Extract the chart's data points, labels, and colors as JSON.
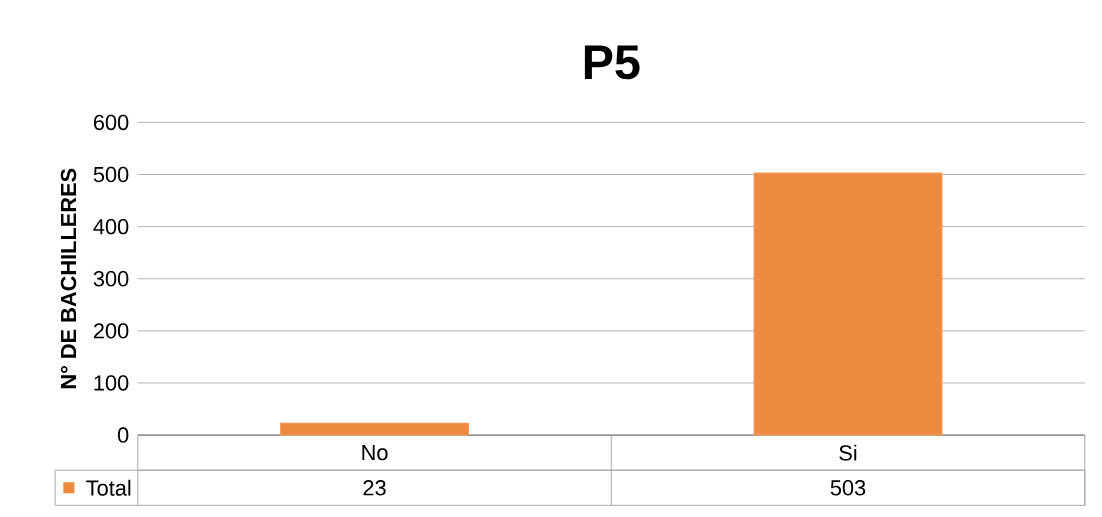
{
  "chart_data": {
    "type": "bar",
    "title": "P5",
    "ylabel": "N° DE BACHILLERES",
    "categories": [
      "No",
      "Si"
    ],
    "series": [
      {
        "name": "Total",
        "color": "#ed8a3f",
        "values": [
          23,
          503
        ]
      }
    ],
    "ylim": [
      0,
      600
    ],
    "yticks": [
      0,
      100,
      200,
      300,
      400,
      500,
      600
    ],
    "grid": "y",
    "legend": "bottom",
    "data_labels": true
  }
}
